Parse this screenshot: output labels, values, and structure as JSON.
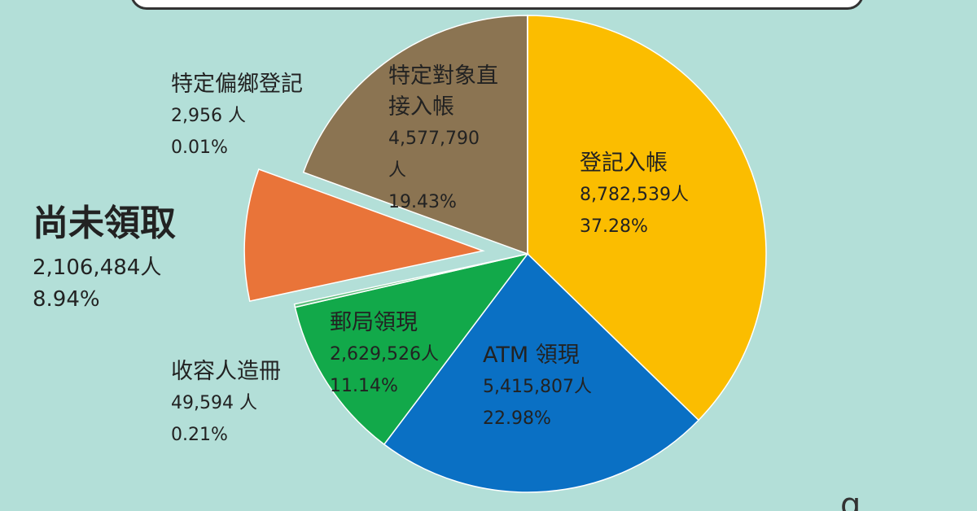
{
  "chart_data": {
    "type": "pie",
    "categories": [
      "登記入帳",
      "ATM 領現",
      "郵局領現",
      "收容人造冊",
      "尚未領取",
      "特定對象直接入帳",
      "特定偏鄉登記"
    ],
    "values": [
      37.28,
      22.98,
      11.14,
      0.21,
      8.94,
      19.43,
      0.01
    ],
    "value_labels": [
      "37.28%",
      "22.98%",
      "11.14%",
      "0.21%",
      "8.94%",
      "19.43%",
      "0.01%"
    ],
    "counts": [
      8782539,
      5415807,
      2629526,
      49594,
      2106484,
      4577790,
      2956
    ],
    "count_labels": [
      "8,782,539人",
      "5,415,807人",
      "2,629,526人",
      "49,594 人",
      "2,106,484人",
      "4,577,790 人",
      "2,956 人"
    ],
    "colors": [
      "#fbbd00",
      "#0a70c4",
      "#12a94a",
      "#5fbf7f",
      "#e97439",
      "#8b7452",
      "#e6e6e6"
    ],
    "exploded": 4,
    "logo": "g"
  }
}
